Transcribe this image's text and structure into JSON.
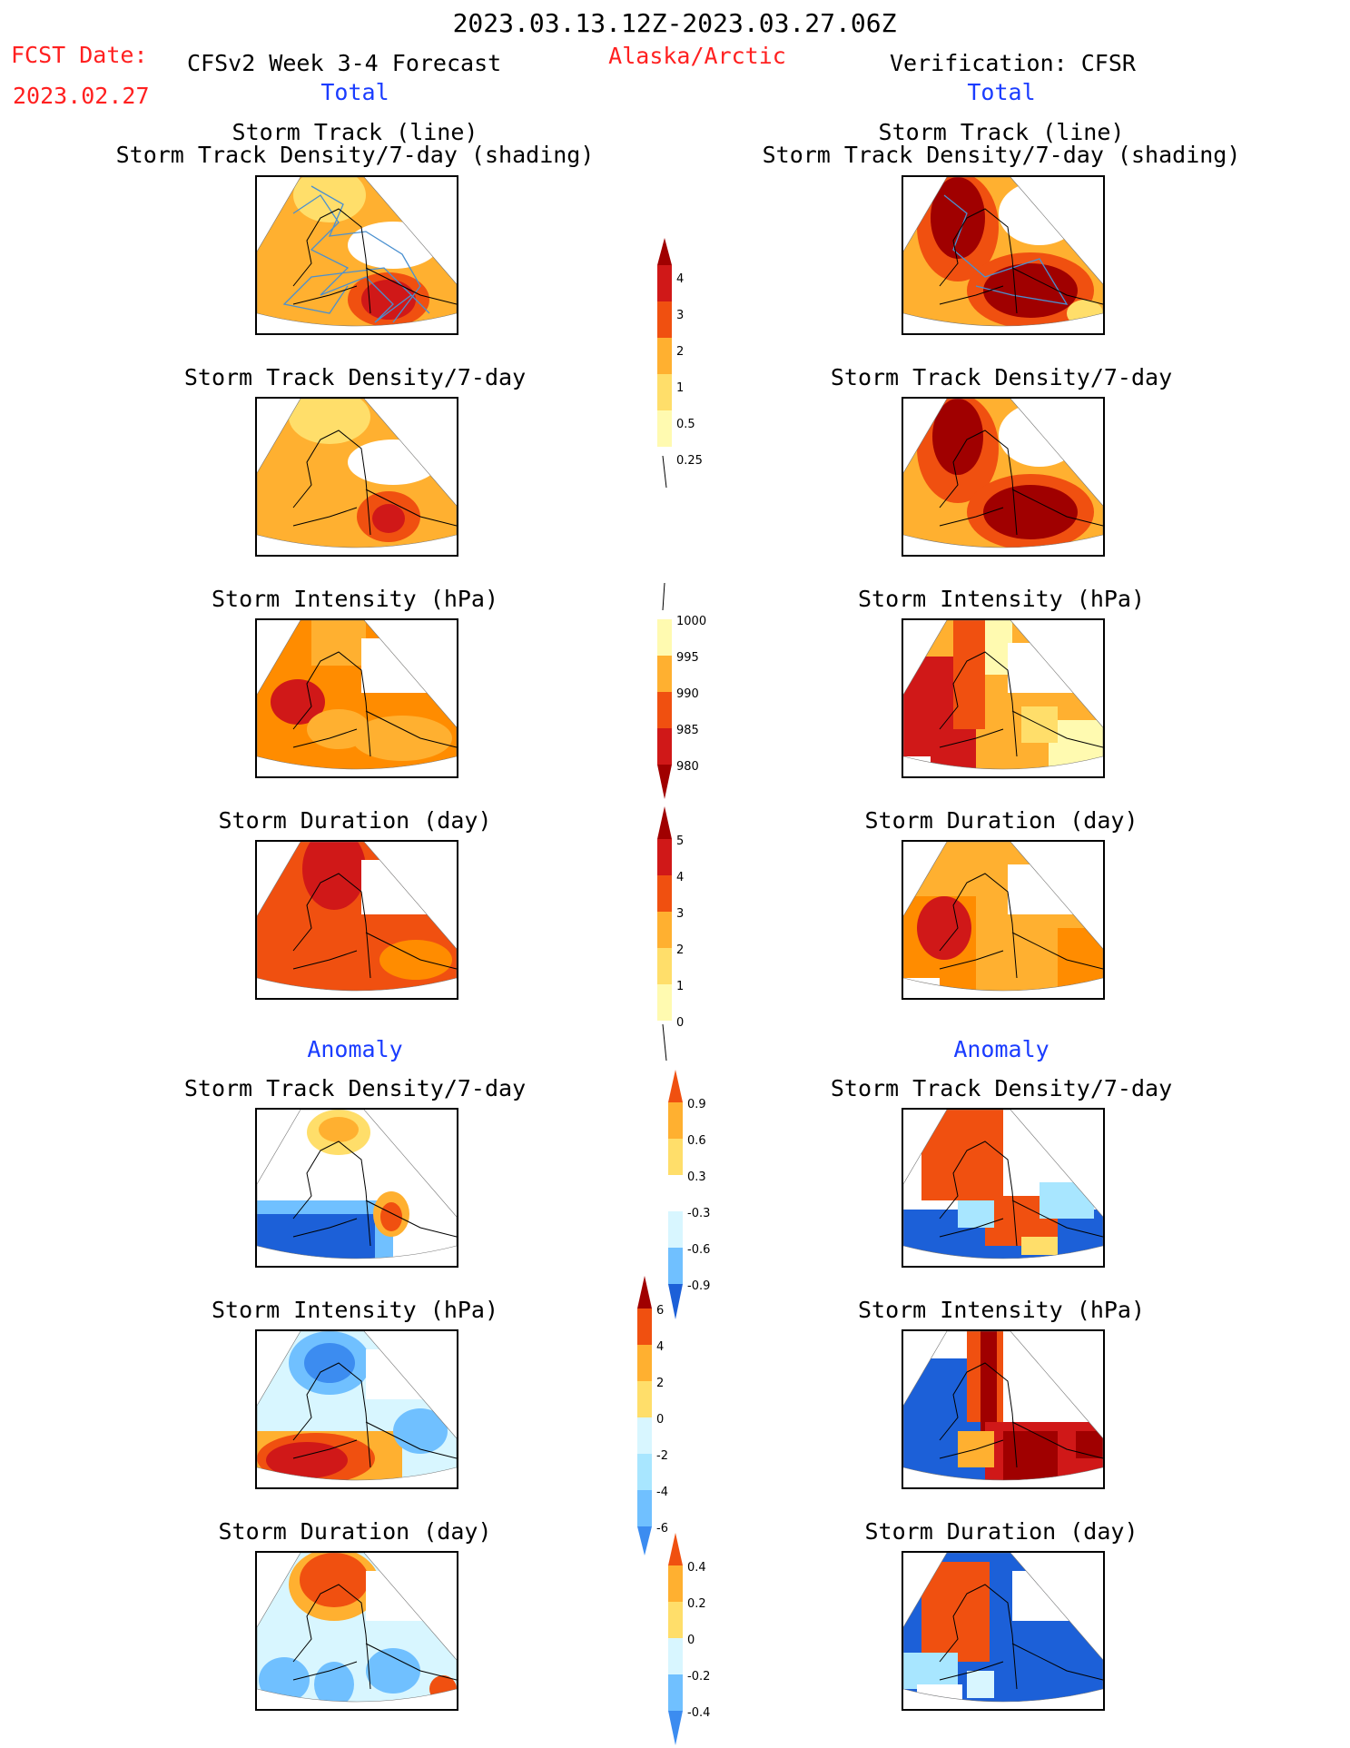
{
  "header": {
    "period": "2023.03.13.12Z-2023.03.27.06Z",
    "fcst_label": "FCST Date:",
    "fcst_date": "2023.02.27",
    "forecast_title": "CFSv2 Week 3-4 Forecast",
    "region": "Alaska/Arctic",
    "verification": "Verification: CFSR",
    "left_total": "Total",
    "right_total": "Total",
    "left_anomaly": "Anomaly",
    "right_anomaly": "Anomaly"
  },
  "titles": {
    "track_line": "Storm Track (line)",
    "track_shading": "Storm Track Density/7-day (shading)",
    "density": "Storm Track Density/7-day",
    "intensity": "Storm Intensity (hPa)",
    "duration": "Storm Duration (day)"
  },
  "colorbars": {
    "density": [
      "0.25",
      "0.5",
      "1",
      "2",
      "3",
      "4"
    ],
    "intensity": [
      "980",
      "985",
      "990",
      "995",
      "1000"
    ],
    "duration": [
      "0",
      "1",
      "2",
      "3",
      "4",
      "5"
    ],
    "density_anom": [
      "-0.9",
      "-0.6",
      "-0.3",
      "0.3",
      "0.6",
      "0.9"
    ],
    "intensity_anom": [
      "-6",
      "-4",
      "-2",
      "0",
      "2",
      "4",
      "6"
    ],
    "duration_anom": [
      "-0.4",
      "-0.2",
      "0",
      "0.2",
      "0.4"
    ]
  },
  "colors": {
    "title_red": "#ff2020",
    "title_blue": "#1a3cff",
    "warm": [
      "#fffab0",
      "#ffde6a",
      "#ffb030",
      "#ff8c00",
      "#f05010",
      "#d01818",
      "#a00000"
    ],
    "cool": [
      "#d8f6ff",
      "#a8e6ff",
      "#70c0ff",
      "#3c8cf0",
      "#1c60d8"
    ]
  }
}
